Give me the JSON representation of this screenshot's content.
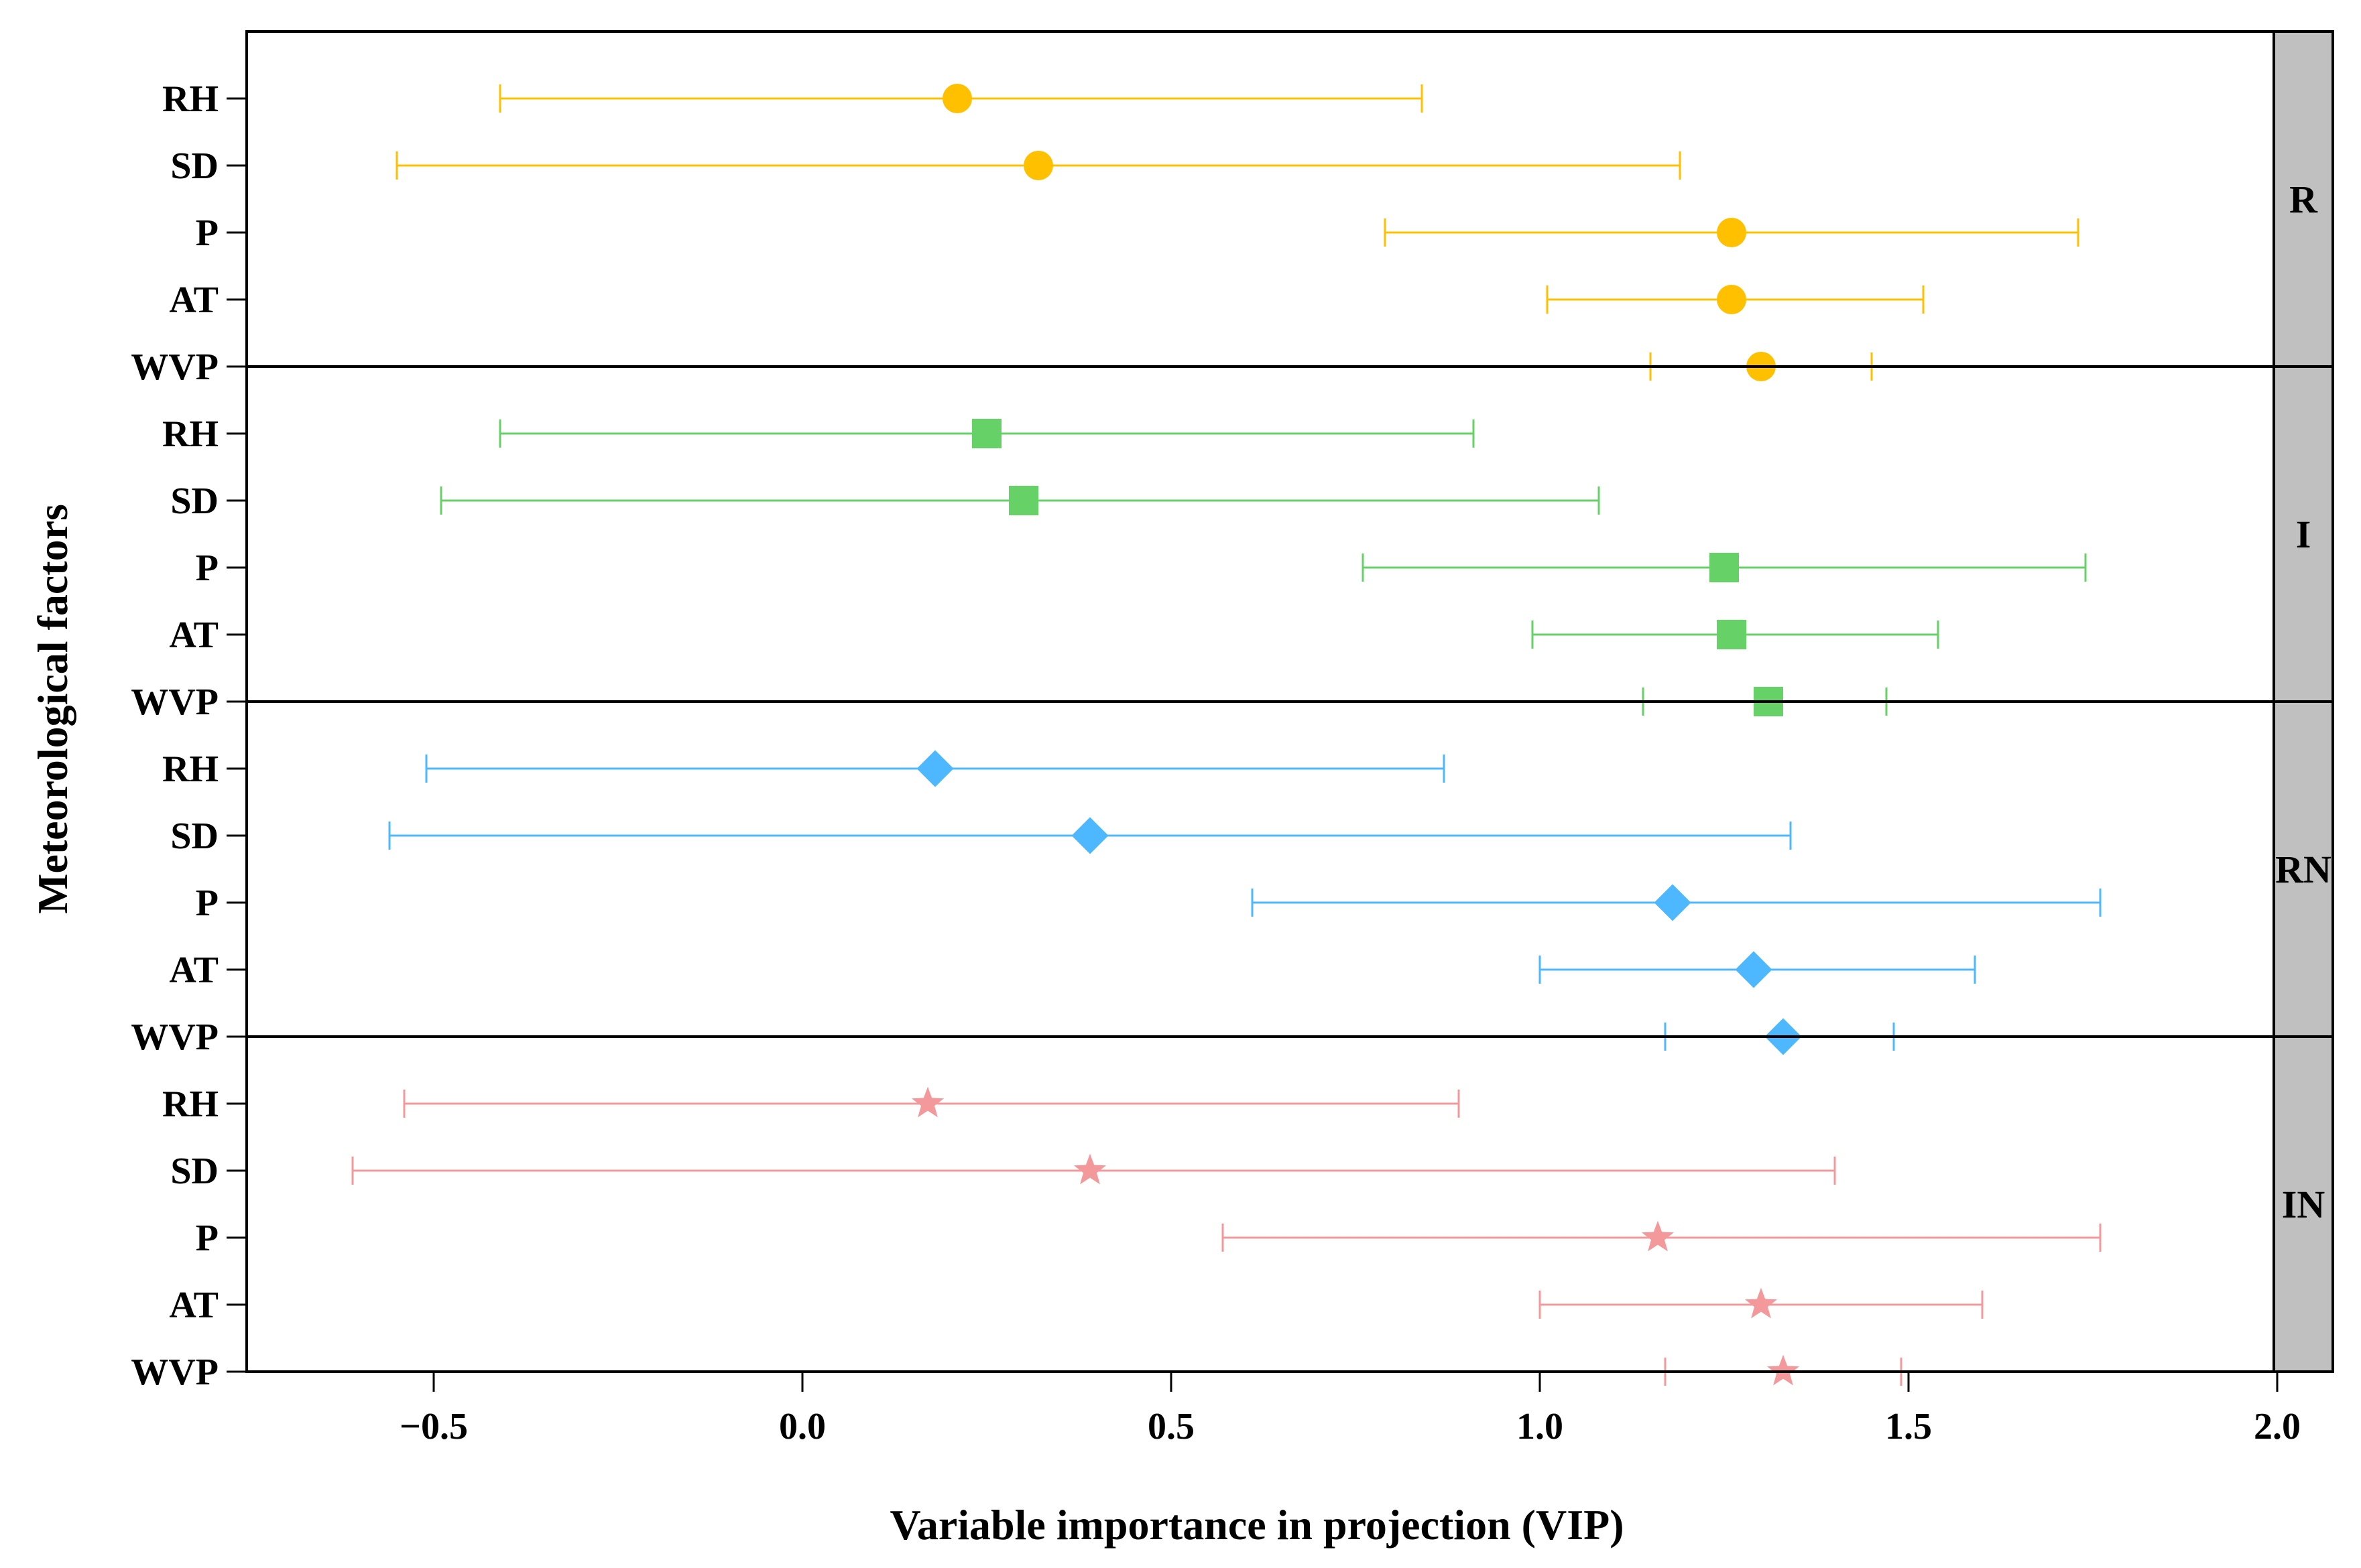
{
  "chart_data": {
    "type": "scatter",
    "subtype": "dot-and-whisker, faceted by rows",
    "title": "",
    "xlabel": "Variable importance in projection (VIP)",
    "ylabel": "Meteorological factors",
    "xlim": [
      -0.75,
      2.0
    ],
    "xticks": [
      -0.5,
      0.0,
      0.5,
      1.0,
      1.5,
      2.0
    ],
    "xtick_labels": [
      "−0.5",
      "0.0",
      "0.5",
      "1.0",
      "1.5",
      "2.0"
    ],
    "grid": false,
    "factors": [
      "RH",
      "SD",
      "P",
      "AT",
      "WVP"
    ],
    "facet_strip_color": "#c0c0c0",
    "panels": [
      {
        "label": "R",
        "color": "#ffc000",
        "marker": "circle",
        "points": [
          {
            "factor": "RH",
            "vip": 0.21,
            "low": -0.41,
            "high": 0.84
          },
          {
            "factor": "SD",
            "vip": 0.32,
            "low": -0.55,
            "high": 1.19
          },
          {
            "factor": "P",
            "vip": 1.26,
            "low": 0.79,
            "high": 1.73
          },
          {
            "factor": "AT",
            "vip": 1.26,
            "low": 1.01,
            "high": 1.52
          },
          {
            "factor": "WVP",
            "vip": 1.3,
            "low": 1.15,
            "high": 1.45
          }
        ]
      },
      {
        "label": "I",
        "color": "#66d166",
        "marker": "square",
        "points": [
          {
            "factor": "RH",
            "vip": 0.25,
            "low": -0.41,
            "high": 0.91
          },
          {
            "factor": "SD",
            "vip": 0.3,
            "low": -0.49,
            "high": 1.08
          },
          {
            "factor": "P",
            "vip": 1.25,
            "low": 0.76,
            "high": 1.74
          },
          {
            "factor": "AT",
            "vip": 1.26,
            "low": 0.99,
            "high": 1.54
          },
          {
            "factor": "WVP",
            "vip": 1.31,
            "low": 1.14,
            "high": 1.47
          }
        ]
      },
      {
        "label": "RN",
        "color": "#4db8ff",
        "marker": "diamond",
        "points": [
          {
            "factor": "RH",
            "vip": 0.18,
            "low": -0.51,
            "high": 0.87
          },
          {
            "factor": "SD",
            "vip": 0.39,
            "low": -0.56,
            "high": 1.34
          },
          {
            "factor": "P",
            "vip": 1.18,
            "low": 0.61,
            "high": 1.76
          },
          {
            "factor": "AT",
            "vip": 1.29,
            "low": 1.0,
            "high": 1.59
          },
          {
            "factor": "WVP",
            "vip": 1.33,
            "low": 1.17,
            "high": 1.48
          }
        ]
      },
      {
        "label": "IN",
        "color": "#f4999b",
        "marker": "star",
        "points": [
          {
            "factor": "RH",
            "vip": 0.17,
            "low": -0.54,
            "high": 0.89
          },
          {
            "factor": "SD",
            "vip": 0.39,
            "low": -0.61,
            "high": 1.4
          },
          {
            "factor": "P",
            "vip": 1.16,
            "low": 0.57,
            "high": 1.76
          },
          {
            "factor": "AT",
            "vip": 1.3,
            "low": 1.0,
            "high": 1.6
          },
          {
            "factor": "WVP",
            "vip": 1.33,
            "low": 1.17,
            "high": 1.49
          }
        ]
      }
    ]
  }
}
